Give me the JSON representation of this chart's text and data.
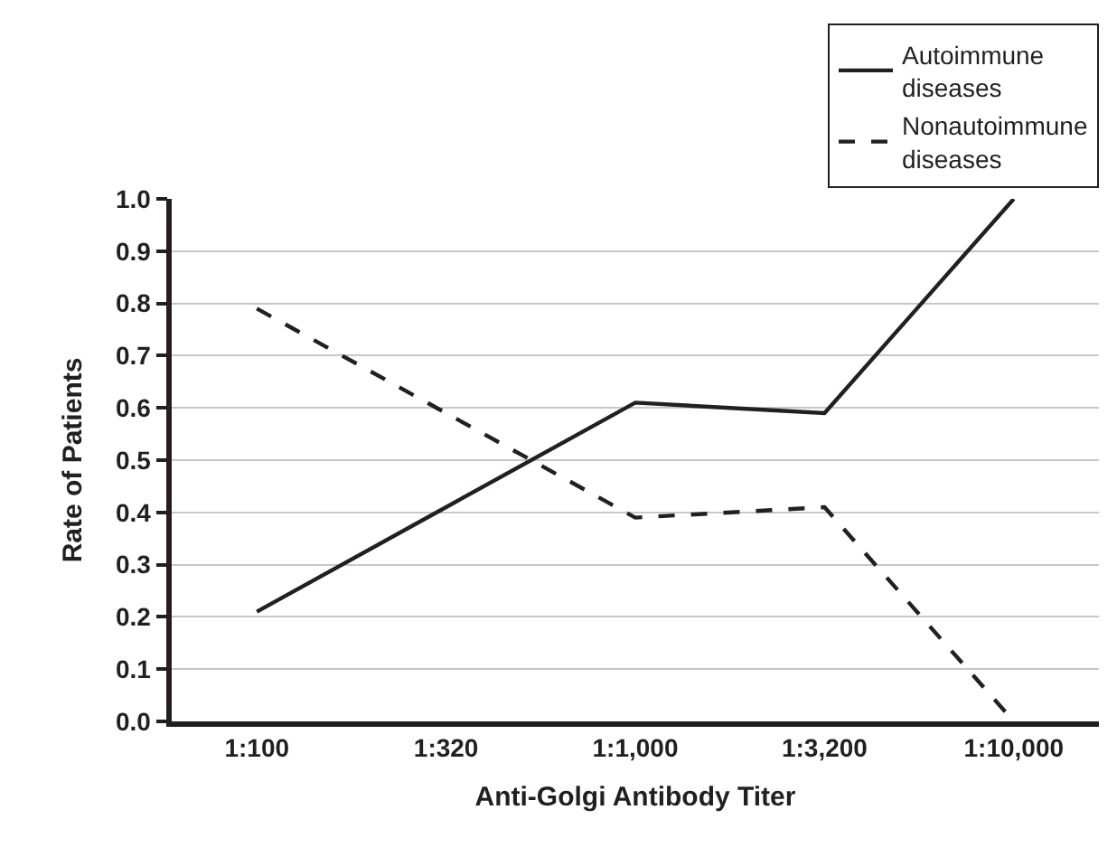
{
  "chart_data": {
    "type": "line",
    "xlabel": "Anti-Golgi Antibody Titer",
    "ylabel": "Rate of Patients",
    "categories": [
      "1:100",
      "1:320",
      "1:1,000",
      "1:3,200",
      "1:10,000"
    ],
    "series": [
      {
        "name": "Autoimmune diseases",
        "color": "#231f20",
        "line_style": "solid",
        "values": [
          0.21,
          0.41,
          0.61,
          0.59,
          1.0
        ]
      },
      {
        "name": "Nonautoimmune diseases",
        "color": "#231f20",
        "line_style": "dashed",
        "values": [
          0.79,
          0.59,
          0.39,
          0.41,
          0.0
        ]
      }
    ],
    "ylim": [
      0,
      1.0
    ],
    "yticks": [
      {
        "value": 0,
        "label": "0.0"
      },
      0.1,
      0.2,
      0.3,
      0.4,
      0.5,
      0.6,
      0.7,
      0.8,
      0.9,
      {
        "value": 1,
        "label": "1.0"
      }
    ],
    "grid": "y",
    "legend": "top right",
    "marker": "none"
  }
}
